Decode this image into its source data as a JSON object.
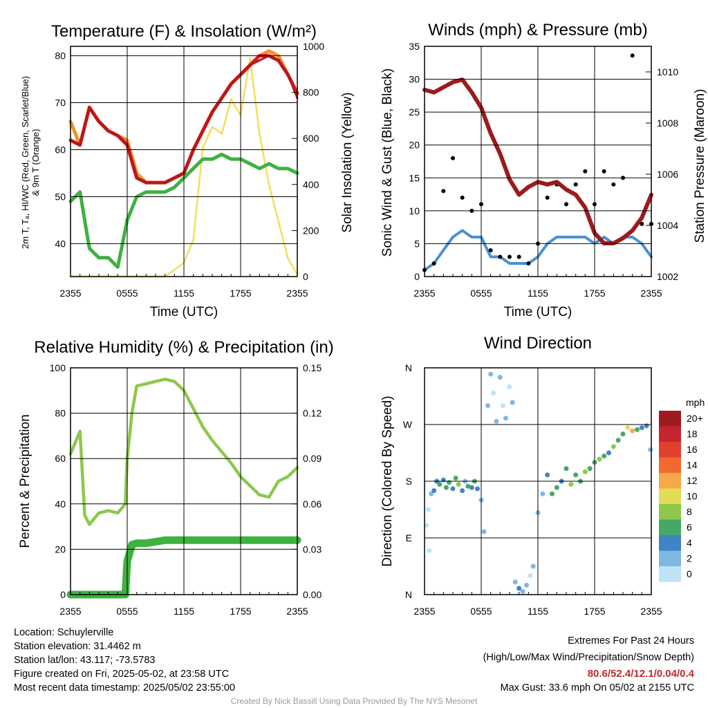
{
  "chart_data": [
    {
      "type": "line",
      "title": "Temperature (F) & Insolation (W/m²)",
      "xlabel": "Time (UTC)",
      "ylabel": "2m T, Tₐ, HI/WC (Red, Green, Scarlet/Blue)",
      "ylabel2": "& 9m T (Orange)",
      "y2label": "Solar Insolation (Yellow)",
      "x_ticks": [
        "2355",
        "0555",
        "1155",
        "1755",
        "2355"
      ],
      "ylim": [
        33,
        82
      ],
      "y_ticks": [
        40,
        50,
        60,
        70,
        80
      ],
      "y2lim": [
        0,
        1000
      ],
      "y2_ticks": [
        0,
        200,
        400,
        600,
        800,
        1000
      ],
      "x_hours": [
        0,
        1,
        2,
        3,
        4,
        5,
        6,
        7,
        8,
        9,
        10,
        11,
        12,
        13,
        14,
        15,
        16,
        17,
        18,
        19,
        20,
        21,
        22,
        23,
        24
      ],
      "series": [
        {
          "color": "#f0922b",
          "axis": "left",
          "values": [
            66,
            61,
            69,
            66,
            64,
            63,
            62,
            55,
            53,
            53,
            53,
            54,
            55,
            60,
            64,
            68,
            71,
            74,
            76,
            78,
            80,
            81,
            80,
            76,
            72
          ]
        },
        {
          "color": "#d7191c",
          "axis": "left",
          "values": [
            62,
            61,
            69,
            66,
            64,
            63,
            61,
            54,
            53,
            53,
            53,
            54,
            55,
            60,
            64,
            68,
            71,
            74,
            76,
            78,
            80,
            80,
            79,
            76,
            72
          ]
        },
        {
          "color": "#b01a1a",
          "axis": "left",
          "values": [
            62,
            61,
            69,
            66,
            64,
            63,
            61,
            54,
            53,
            53,
            53,
            54,
            55,
            60,
            64,
            68,
            71,
            74,
            76,
            78,
            79,
            80,
            79,
            76,
            71
          ]
        },
        {
          "color": "#3db23f",
          "axis": "left",
          "values": [
            49,
            51,
            39,
            37,
            37,
            35,
            45,
            50,
            51,
            51,
            51,
            52,
            54,
            56,
            58,
            58,
            59,
            58,
            58,
            57,
            56,
            57,
            56,
            56,
            55
          ]
        },
        {
          "color": "#f6dd5a",
          "axis": "right",
          "values": [
            0,
            0,
            0,
            0,
            0,
            0,
            0,
            0,
            0,
            0,
            0,
            30,
            60,
            160,
            560,
            650,
            620,
            770,
            700,
            950,
            620,
            400,
            240,
            80,
            10
          ]
        }
      ]
    },
    {
      "type": "line",
      "title": "Winds (mph) & Pressure (mb)",
      "xlabel": "Time (UTC)",
      "ylabel": "Sonic Wind & Gust (Blue, Black)",
      "y2label": "Station Pressure (Maroon)",
      "x_ticks": [
        "2355",
        "0555",
        "1155",
        "1755",
        "2355"
      ],
      "ylim": [
        0,
        35
      ],
      "y_ticks": [
        0,
        5,
        10,
        15,
        20,
        25,
        30,
        35
      ],
      "y2lim": [
        1002,
        1011
      ],
      "y2_ticks": [
        1002,
        1004,
        1006,
        1008,
        1010
      ],
      "x_hours": [
        0,
        1,
        2,
        3,
        4,
        5,
        6,
        7,
        8,
        9,
        10,
        11,
        12,
        13,
        14,
        15,
        16,
        17,
        18,
        19,
        20,
        21,
        22,
        23,
        24
      ],
      "series": [
        {
          "color": "#4a90d0",
          "axis": "left",
          "values": [
            1,
            2,
            4,
            6,
            7,
            6,
            6,
            3,
            3,
            2,
            2,
            2,
            3,
            5,
            6,
            6,
            6,
            6,
            5,
            6,
            5,
            6,
            6,
            5,
            3
          ]
        },
        {
          "color": "#000000",
          "axis": "left",
          "values": [
            1,
            2,
            13,
            18,
            12,
            10,
            11,
            4,
            3,
            3,
            3,
            2,
            5,
            12,
            14,
            11,
            14,
            16,
            11,
            16,
            14,
            15,
            33.6,
            8,
            8
          ]
        },
        {
          "color": "#9b1b1b",
          "axis": "right",
          "values": [
            1009.3,
            1009.2,
            1009.4,
            1009.6,
            1009.7,
            1009.2,
            1008.6,
            1007.6,
            1006.8,
            1005.8,
            1005.2,
            1005.5,
            1005.7,
            1005.6,
            1005.7,
            1005.4,
            1005.2,
            1004.7,
            1003.7,
            1003.3,
            1003.3,
            1003.5,
            1003.8,
            1004.3,
            1005.2
          ]
        }
      ]
    },
    {
      "type": "line",
      "title": "Relative Humidity (%) & Precipitation (in)",
      "xlabel": "",
      "ylabel": "Percent & Precipitation",
      "x_ticks": [
        "2355",
        "0555",
        "1155",
        "1755",
        "2355"
      ],
      "ylim": [
        0,
        100
      ],
      "y_ticks": [
        0,
        20,
        40,
        60,
        80,
        100
      ],
      "y2lim": [
        0,
        0.15
      ],
      "y2_ticks": [
        "0.00",
        "0.03",
        "0.06",
        "0.09",
        "0.12",
        "0.15"
      ],
      "x_hours": [
        0,
        1,
        1.5,
        2,
        3,
        4,
        5,
        5.8,
        6,
        6.5,
        7,
        8,
        9,
        10,
        11,
        12,
        13,
        14,
        15,
        16,
        17,
        18,
        19,
        20,
        21,
        22,
        23,
        24
      ],
      "series": [
        {
          "color": "#8cc84b",
          "axis": "left",
          "values": [
            62,
            72,
            35,
            31,
            36,
            37,
            36,
            40,
            60,
            80,
            92,
            93,
            94,
            95,
            94,
            90,
            82,
            74,
            68,
            63,
            58,
            52,
            48,
            44,
            43,
            50,
            52,
            56
          ]
        },
        {
          "color": "#3db23f",
          "axis": "right",
          "values": [
            0,
            0,
            0,
            0,
            0,
            0,
            0,
            0,
            0.022,
            0.033,
            0.034,
            0.034,
            0.035,
            0.036,
            0.036,
            0.036,
            0.036,
            0.036,
            0.036,
            0.036,
            0.036,
            0.036,
            0.036,
            0.036,
            0.036,
            0.036,
            0.036,
            0.036
          ]
        }
      ]
    },
    {
      "type": "scatter",
      "title": "Wind Direction",
      "ylabel": "Direction (Colored By Speed)",
      "x_ticks": [
        "2355",
        "0555",
        "1155",
        "1755",
        "2355"
      ],
      "y_ticks": [
        "N",
        "E",
        "S",
        "W",
        "N"
      ],
      "ylim": [
        0,
        360
      ],
      "legend_title": "mph",
      "legend_labels": [
        "20+",
        "18",
        "16",
        "14",
        "12",
        "10",
        "8",
        "6",
        "4",
        "2",
        "0"
      ],
      "legend_colors": [
        "#9e1b22",
        "#c4262e",
        "#e0402d",
        "#f06a30",
        "#f6a94a",
        "#e3dc57",
        "#8cc84b",
        "#45a865",
        "#3f84c5",
        "#7fb7e3",
        "#bde3f5"
      ],
      "points": [
        {
          "h": 0.2,
          "dir": 110,
          "spd": 1
        },
        {
          "h": 0.4,
          "dir": 135,
          "spd": 1
        },
        {
          "h": 0.5,
          "dir": 70,
          "spd": 1
        },
        {
          "h": 0.7,
          "dir": 160,
          "spd": 2
        },
        {
          "h": 1.0,
          "dir": 165,
          "spd": 4
        },
        {
          "h": 1.3,
          "dir": 180,
          "spd": 5
        },
        {
          "h": 1.6,
          "dir": 175,
          "spd": 6
        },
        {
          "h": 2.0,
          "dir": 182,
          "spd": 5
        },
        {
          "h": 2.3,
          "dir": 170,
          "spd": 7
        },
        {
          "h": 2.6,
          "dir": 178,
          "spd": 6
        },
        {
          "h": 3.0,
          "dir": 168,
          "spd": 4
        },
        {
          "h": 3.3,
          "dir": 185,
          "spd": 7
        },
        {
          "h": 3.6,
          "dir": 175,
          "spd": 8
        },
        {
          "h": 4.0,
          "dir": 165,
          "spd": 5
        },
        {
          "h": 4.3,
          "dir": 180,
          "spd": 3
        },
        {
          "h": 4.6,
          "dir": 172,
          "spd": 6
        },
        {
          "h": 5.0,
          "dir": 170,
          "spd": 4
        },
        {
          "h": 5.3,
          "dir": 180,
          "spd": 7
        },
        {
          "h": 5.6,
          "dir": 168,
          "spd": 5
        },
        {
          "h": 6.0,
          "dir": 150,
          "spd": 3
        },
        {
          "h": 6.3,
          "dir": 100,
          "spd": 2
        },
        {
          "h": 6.7,
          "dir": 300,
          "spd": 2
        },
        {
          "h": 7.0,
          "dir": 350,
          "spd": 2
        },
        {
          "h": 7.3,
          "dir": 320,
          "spd": 1
        },
        {
          "h": 7.6,
          "dir": 275,
          "spd": 3
        },
        {
          "h": 8.0,
          "dir": 345,
          "spd": 2
        },
        {
          "h": 8.3,
          "dir": 300,
          "spd": 1
        },
        {
          "h": 8.6,
          "dir": 280,
          "spd": 2
        },
        {
          "h": 9.0,
          "dir": 330,
          "spd": 1
        },
        {
          "h": 9.3,
          "dir": 305,
          "spd": 2
        },
        {
          "h": 9.6,
          "dir": 20,
          "spd": 3
        },
        {
          "h": 10.0,
          "dir": 10,
          "spd": 4
        },
        {
          "h": 10.4,
          "dir": 5,
          "spd": 3
        },
        {
          "h": 10.8,
          "dir": 15,
          "spd": 2
        },
        {
          "h": 11.2,
          "dir": 30,
          "spd": 1
        },
        {
          "h": 11.5,
          "dir": 45,
          "spd": 2
        },
        {
          "h": 12.0,
          "dir": 130,
          "spd": 2
        },
        {
          "h": 12.5,
          "dir": 160,
          "spd": 3
        },
        {
          "h": 13.0,
          "dir": 190,
          "spd": 5
        },
        {
          "h": 13.5,
          "dir": 160,
          "spd": 6
        },
        {
          "h": 14.0,
          "dir": 170,
          "spd": 7
        },
        {
          "h": 14.5,
          "dir": 180,
          "spd": 5
        },
        {
          "h": 15.0,
          "dir": 200,
          "spd": 6
        },
        {
          "h": 15.5,
          "dir": 175,
          "spd": 8
        },
        {
          "h": 16.0,
          "dir": 190,
          "spd": 7
        },
        {
          "h": 16.5,
          "dir": 180,
          "spd": 6
        },
        {
          "h": 17.0,
          "dir": 195,
          "spd": 8
        },
        {
          "h": 17.5,
          "dir": 200,
          "spd": 7
        },
        {
          "h": 18.0,
          "dir": 210,
          "spd": 6
        },
        {
          "h": 18.5,
          "dir": 215,
          "spd": 8
        },
        {
          "h": 19.0,
          "dir": 220,
          "spd": 7
        },
        {
          "h": 19.5,
          "dir": 225,
          "spd": 5
        },
        {
          "h": 20.0,
          "dir": 235,
          "spd": 8
        },
        {
          "h": 20.5,
          "dir": 245,
          "spd": 6
        },
        {
          "h": 21.0,
          "dir": 255,
          "spd": 7
        },
        {
          "h": 21.5,
          "dir": 265,
          "spd": 10
        },
        {
          "h": 22.0,
          "dir": 260,
          "spd": 12
        },
        {
          "h": 22.5,
          "dir": 262,
          "spd": 6
        },
        {
          "h": 23.0,
          "dir": 265,
          "spd": 4
        },
        {
          "h": 23.5,
          "dir": 268,
          "spd": 5
        },
        {
          "h": 23.9,
          "dir": 230,
          "spd": 3
        }
      ]
    }
  ],
  "footer_left": [
    "Location: Schuylerville",
    "Station elevation: 31.4462 m",
    "Station lat/lon: 43.117; -73.5783",
    "Figure created on Fri, 2025-05-02, at 23:58 UTC",
    "Most recent data timestamp: 2025/05/02 23:55:00"
  ],
  "footer_right": {
    "line1": "Extremes For Past 24 Hours",
    "line2": "(High/Low/Max Wind/Precipitation/Snow Depth)",
    "values": "80.6/52.4/12.1/0.04/0.4",
    "gust": "Max Gust: 33.6 mph On 05/02 at 2155 UTC"
  },
  "credit": "Created By Nick Bassill Using Data Provided By The NYS Mesonet"
}
